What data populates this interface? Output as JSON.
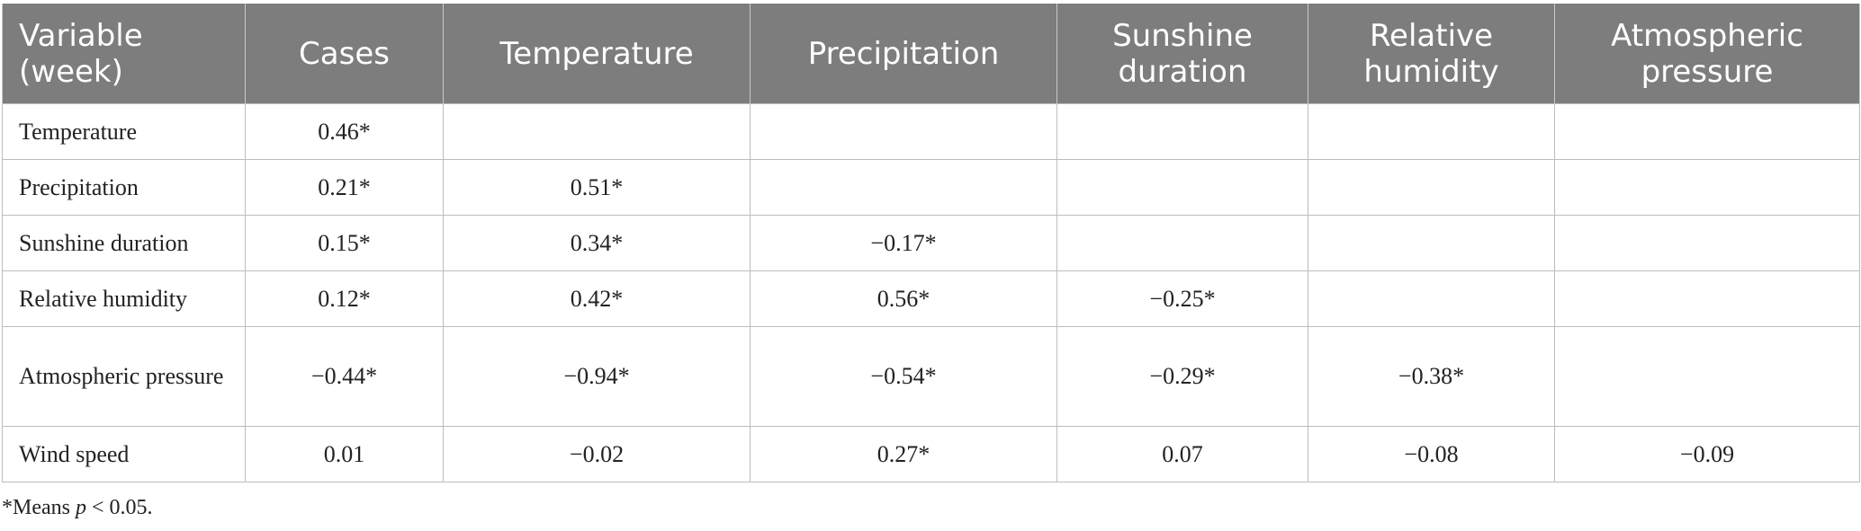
{
  "table": {
    "headers": [
      "Variable (week)",
      "Cases",
      "Temperature",
      "Precipitation",
      "Sunshine duration",
      "Relative humidity",
      "Atmospheric pressure"
    ],
    "rows": [
      {
        "label": "Temperature",
        "cells": [
          "0.46*",
          "",
          "",
          "",
          "",
          ""
        ]
      },
      {
        "label": "Precipitation",
        "cells": [
          "0.21*",
          "0.51*",
          "",
          "",
          "",
          ""
        ]
      },
      {
        "label": "Sunshine duration",
        "cells": [
          "0.15*",
          "0.34*",
          "−0.17*",
          "",
          "",
          ""
        ]
      },
      {
        "label": "Relative humidity",
        "cells": [
          "0.12*",
          "0.42*",
          "0.56*",
          "−0.25*",
          "",
          ""
        ]
      },
      {
        "label": "Atmospheric pressure",
        "cells": [
          "−0.44*",
          "−0.94*",
          "−0.54*",
          "−0.29*",
          "−0.38*",
          ""
        ]
      },
      {
        "label": "Wind speed",
        "cells": [
          "0.01",
          "−0.02",
          "0.27*",
          "0.07",
          "−0.08",
          "−0.09"
        ]
      }
    ]
  },
  "footnote": {
    "prefix": "*Means ",
    "italic": "p",
    "suffix": " < 0.05."
  }
}
